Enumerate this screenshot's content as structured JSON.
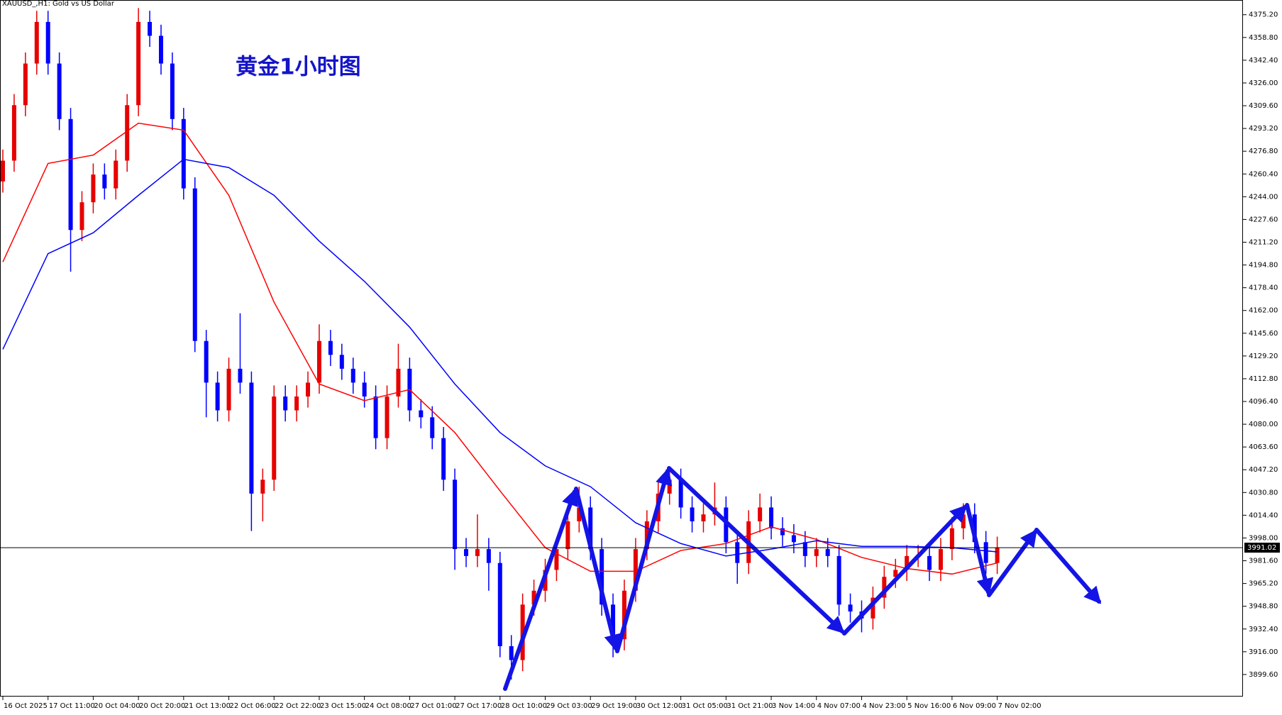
{
  "chart_data": {
    "type": "candlestick",
    "header": "XAUUSD_,H1:  Gold vs US Dollar",
    "title": "黄金1小时图",
    "categories": [
      "16 Oct 2025",
      "17 Oct 11:00",
      "20 Oct 04:00",
      "20 Oct 20:00",
      "21 Oct 13:00",
      "22 Oct 06:00",
      "22 Oct 22:00",
      "23 Oct 15:00",
      "24 Oct 08:00",
      "27 Oct 01:00",
      "27 Oct 17:00",
      "28 Oct 10:00",
      "29 Oct 03:00",
      "29 Oct 19:00",
      "30 Oct 12:00",
      "31 Oct 05:00",
      "31 Oct 21:00",
      "3 Nov 14:00",
      "4 Nov 07:00",
      "4 Nov 23:00",
      "5 Nov 16:00",
      "6 Nov 09:00",
      "7 Nov 02:00"
    ],
    "candles": {
      "open": [
        4255,
        4270,
        4310,
        4340,
        4370,
        4340,
        4300,
        4220,
        4240,
        4260,
        4250,
        4270,
        4310,
        4370,
        4360,
        4340,
        4300,
        4250,
        4140,
        4110,
        4090,
        4120,
        4110,
        4030,
        4040,
        4100,
        4090,
        4100,
        4110,
        4140,
        4130,
        4120,
        4110,
        4100,
        4070,
        4100,
        4120,
        4090,
        4085,
        4070,
        4040,
        3990,
        3985,
        3990,
        3980,
        3920,
        3910,
        3950,
        3960,
        3975,
        3990,
        4010,
        4020,
        3990,
        3950,
        3925,
        3960,
        3990,
        4010,
        4030,
        4040,
        4020,
        4010,
        4015,
        4020,
        3995,
        3980,
        4010,
        4020,
        4005,
        4000,
        3995,
        3985,
        3990,
        3985,
        3950,
        3945,
        3940,
        3955,
        3970,
        3975,
        3985,
        3985,
        3975,
        3990,
        4005,
        4015,
        3995,
        3980
      ],
      "high": [
        4278,
        4318,
        4348,
        4378,
        4378,
        4348,
        4308,
        4248,
        4268,
        4268,
        4278,
        4318,
        4380,
        4378,
        4368,
        4348,
        4308,
        4258,
        4148,
        4118,
        4128,
        4160,
        4118,
        4048,
        4108,
        4108,
        4108,
        4118,
        4152,
        4148,
        4138,
        4128,
        4118,
        4108,
        4108,
        4138,
        4128,
        4098,
        4093,
        4078,
        4048,
        3998,
        4015,
        3998,
        3988,
        3928,
        3958,
        3968,
        3983,
        3998,
        4018,
        4035,
        4028,
        3998,
        3958,
        3968,
        3998,
        4018,
        4038,
        4048,
        4048,
        4028,
        4023,
        4038,
        4028,
        4003,
        4018,
        4030,
        4028,
        4013,
        4008,
        4003,
        3998,
        3998,
        3993,
        3958,
        3953,
        3963,
        3978,
        3983,
        3993,
        3993,
        3993,
        3998,
        4013,
        4023,
        4023,
        4003,
        3999
      ],
      "low": [
        4247,
        4262,
        4302,
        4332,
        4332,
        4292,
        4190,
        4212,
        4232,
        4242,
        4242,
        4262,
        4302,
        4352,
        4332,
        4292,
        4242,
        4132,
        4085,
        4082,
        4082,
        4102,
        4003,
        4010,
        4032,
        4082,
        4082,
        4092,
        4102,
        4122,
        4112,
        4102,
        4092,
        4062,
        4062,
        4092,
        4082,
        4077,
        4062,
        4032,
        3975,
        3977,
        3977,
        3960,
        3912,
        3896,
        3902,
        3942,
        3952,
        3967,
        3982,
        4002,
        3982,
        3942,
        3912,
        3917,
        3952,
        3982,
        4002,
        4022,
        4012,
        4002,
        4002,
        4007,
        3987,
        3965,
        3972,
        4002,
        3997,
        3992,
        3987,
        3977,
        3977,
        3977,
        3942,
        3937,
        3930,
        3932,
        3947,
        3962,
        3967,
        3977,
        3967,
        3967,
        3982,
        3997,
        3987,
        3972,
        3972
      ],
      "close": [
        4270,
        4310,
        4340,
        4370,
        4340,
        4300,
        4220,
        4240,
        4260,
        4250,
        4270,
        4310,
        4370,
        4360,
        4340,
        4300,
        4250,
        4140,
        4110,
        4090,
        4120,
        4110,
        4030,
        4040,
        4100,
        4090,
        4100,
        4110,
        4140,
        4130,
        4120,
        4110,
        4100,
        4070,
        4100,
        4120,
        4090,
        4085,
        4070,
        4040,
        3990,
        3985,
        3990,
        3980,
        3920,
        3910,
        3950,
        3960,
        3975,
        3990,
        4010,
        4020,
        3990,
        3950,
        3925,
        3960,
        3990,
        4010,
        4030,
        4040,
        4020,
        4010,
        4015,
        4020,
        3995,
        3980,
        4010,
        4020,
        4005,
        4000,
        3995,
        3985,
        3990,
        3985,
        3950,
        3945,
        3940,
        3955,
        3970,
        3975,
        3985,
        3985,
        3975,
        3990,
        4005,
        4015,
        3995,
        3980,
        3991
      ]
    },
    "up_color": "#e60000",
    "down_color": "#0000ff",
    "lines": [
      {
        "color": "#ff0000",
        "values": [
          4197,
          4268,
          4274,
          4297,
          4292,
          4245,
          4168,
          4109,
          4097,
          4105,
          4074,
          4032,
          3991,
          3974,
          3974,
          3989,
          3994,
          4006,
          3997,
          3984,
          3976,
          3972,
          3980
        ]
      },
      {
        "color": "#0000ff",
        "values": [
          4134,
          4203,
          4218,
          4245,
          4271,
          4265,
          4245,
          4212,
          4183,
          4150,
          4109,
          4074,
          4050,
          4035,
          4009,
          3994,
          3985,
          3990,
          3996,
          3992,
          3992,
          3991,
          3988
        ]
      }
    ],
    "current_price": {
      "value": 3991.02,
      "label": "3991.02"
    },
    "ylim": [
      3883.7,
      4385.8
    ],
    "yticks": [
      {
        "value": 4375.2,
        "label": "4375.20"
      },
      {
        "value": 4358.8,
        "label": "4358.80"
      },
      {
        "value": 4342.4,
        "label": "4342.40"
      },
      {
        "value": 4326,
        "label": "4326.00"
      },
      {
        "value": 4309.6,
        "label": "4309.60"
      },
      {
        "value": 4293.2,
        "label": "4293.20"
      },
      {
        "value": 4276.8,
        "label": "4276.80"
      },
      {
        "value": 4260.4,
        "label": "4260.40"
      },
      {
        "value": 4244,
        "label": "4244.00"
      },
      {
        "value": 4227.6,
        "label": "4227.60"
      },
      {
        "value": 4211.2,
        "label": "4211.20"
      },
      {
        "value": 4194.8,
        "label": "4194.80"
      },
      {
        "value": 4178.4,
        "label": "4178.40"
      },
      {
        "value": 4162,
        "label": "4162.00"
      },
      {
        "value": 4145.6,
        "label": "4145.60"
      },
      {
        "value": 4129.2,
        "label": "4129.20"
      },
      {
        "value": 4112.8,
        "label": "4112.80"
      },
      {
        "value": 4096.4,
        "label": "4096.40"
      },
      {
        "value": 4080,
        "label": "4080.00"
      },
      {
        "value": 4063.6,
        "label": "4063.60"
      },
      {
        "value": 4047.2,
        "label": "4047.20"
      },
      {
        "value": 4030.8,
        "label": "4030.80"
      },
      {
        "value": 4014.4,
        "label": "4014.40"
      },
      {
        "value": 3998,
        "label": "3998.00"
      },
      {
        "value": 3981.6,
        "label": "3981.60"
      },
      {
        "value": 3965.2,
        "label": "3965.20"
      },
      {
        "value": 3948.8,
        "label": "3948.80"
      },
      {
        "value": 3932.4,
        "label": "3932.40"
      },
      {
        "value": 3916,
        "label": "3916.00"
      },
      {
        "value": 3899.6,
        "label": "3899.60"
      }
    ]
  }
}
